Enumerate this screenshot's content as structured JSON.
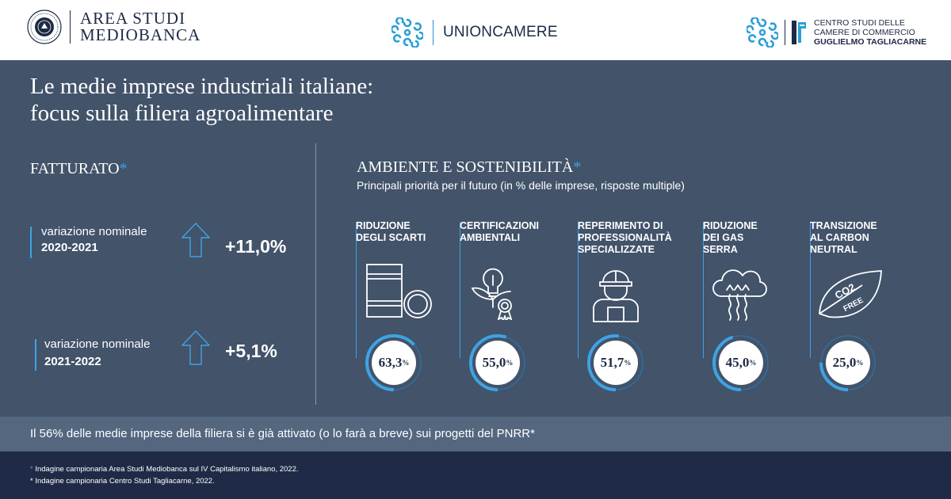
{
  "header": {
    "mediobanca": {
      "line1": "AREA STUDI",
      "line2": "MEDIOBANCA"
    },
    "unioncamere": {
      "name": "UNIONCAMERE"
    },
    "centro_studi": {
      "line1": "CENTRO STUDI DELLE",
      "line2": "CAMERE DI COMMERCIO",
      "line3": "GUGLIELMO TAGLIACARNE"
    }
  },
  "title": {
    "line1": "Le medie imprese industriali italiane:",
    "line2": "focus sulla filiera agroalimentare"
  },
  "fatturato": {
    "heading": "FATTURATO",
    "asterisk": "*",
    "stats": [
      {
        "label": "variazione nominale",
        "years": "2020-2021",
        "value": "+11,0%"
      },
      {
        "label": "variazione nominale",
        "years": "2021-2022",
        "value": "+5,1%"
      }
    ]
  },
  "ambiente": {
    "heading": "AMBIENTE E SOSTENIBILITÀ",
    "asterisk": "*",
    "subtitle": "Principali priorità per il futuro (in % delle imprese, risposte multiple)",
    "items": [
      {
        "label": [
          "RIDUZIONE",
          "DEGLI SCARTI"
        ],
        "icon": "barrel-icon",
        "value": "63,3",
        "unit": "%",
        "share": 0.633
      },
      {
        "label": [
          "CERTIFICAZIONI",
          "AMBIENTALI"
        ],
        "icon": "eco-lightbulb-certificate-icon",
        "value": "55,0",
        "unit": "%",
        "share": 0.55
      },
      {
        "label": [
          "REPERIMENTO DI",
          "PROFESSIONALITÀ",
          "SPECIALIZZATE"
        ],
        "icon": "worker-hardhat-icon",
        "value": "51,7",
        "unit": "%",
        "share": 0.517
      },
      {
        "label": [
          "RIDUZIONE",
          "DEI GAS",
          "SERRA"
        ],
        "icon": "cloud-emission-icon",
        "value": "45,0",
        "unit": "%",
        "share": 0.45
      },
      {
        "label": [
          "TRANSIZIONE",
          "AL CARBON",
          "NEUTRAL"
        ],
        "icon": "co2-free-leaf-icon",
        "value": "25,0",
        "unit": "%",
        "share": 0.25
      }
    ]
  },
  "note": "Il 56% delle medie imprese della filiera si è già attivato (o lo farà a breve) sui progetti del PNRR*",
  "footnotes": [
    {
      "marker": "*",
      "text": " Indagine campionaria Area Studi Mediobanca sul IV Capitalismo italiano, 2022."
    },
    {
      "marker": "",
      "text": "* Indagine campionaria Centro Studi Tagliacarne, 2022."
    }
  ],
  "colors": {
    "navy": "#1c2a45",
    "panel": "#42536a",
    "accent": "#3ea3e4",
    "note_band": "#55667f",
    "footer": "#1f2b46"
  }
}
